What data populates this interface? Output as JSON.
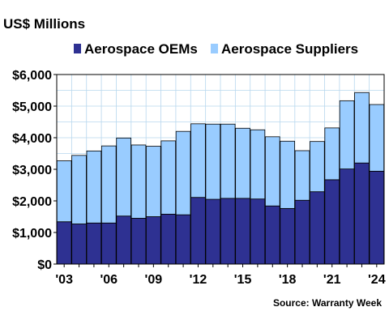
{
  "chart_data": {
    "type": "bar",
    "stacked": true,
    "title": "",
    "unit_label": "US$ Millions",
    "source": "Source: Warranty Week",
    "xlabel": "",
    "ylabel": "",
    "x": [
      2003,
      2004,
      2005,
      2006,
      2007,
      2008,
      2009,
      2010,
      2011,
      2012,
      2013,
      2014,
      2015,
      2016,
      2017,
      2018,
      2019,
      2020,
      2021,
      2022,
      2023,
      2024
    ],
    "x_tick_labels": [
      {
        "year": 2003,
        "label": "'03"
      },
      {
        "year": 2006,
        "label": "'06"
      },
      {
        "year": 2009,
        "label": "'09"
      },
      {
        "year": 2012,
        "label": "'12"
      },
      {
        "year": 2015,
        "label": "'15"
      },
      {
        "year": 2018,
        "label": "'18"
      },
      {
        "year": 2021,
        "label": "'21"
      },
      {
        "year": 2024,
        "label": "'24"
      }
    ],
    "y_ticks": [
      {
        "value": 0,
        "label": "$0"
      },
      {
        "value": 1000,
        "label": "$1,000"
      },
      {
        "value": 2000,
        "label": "$2,000"
      },
      {
        "value": 3000,
        "label": "$3,000"
      },
      {
        "value": 4000,
        "label": "$4,000"
      },
      {
        "value": 5000,
        "label": "$5,000"
      },
      {
        "value": 6000,
        "label": "$6,000"
      }
    ],
    "ylim": [
      0,
      6000
    ],
    "grid": true,
    "legend_position": "top",
    "series": [
      {
        "name": "Aerospace OEMs",
        "color": "#2e3192",
        "values": [
          1340,
          1270,
          1300,
          1300,
          1520,
          1450,
          1500,
          1580,
          1560,
          2110,
          2050,
          2080,
          2080,
          2060,
          1840,
          1760,
          2020,
          2290,
          2670,
          3010,
          3200,
          2940
        ]
      },
      {
        "name": "Aerospace Suppliers",
        "color": "#99ccff",
        "values": [
          1930,
          2170,
          2280,
          2440,
          2470,
          2320,
          2230,
          2320,
          2640,
          2330,
          2380,
          2350,
          2220,
          2190,
          2190,
          2130,
          1570,
          1590,
          1640,
          2160,
          2230,
          2110
        ]
      }
    ]
  }
}
